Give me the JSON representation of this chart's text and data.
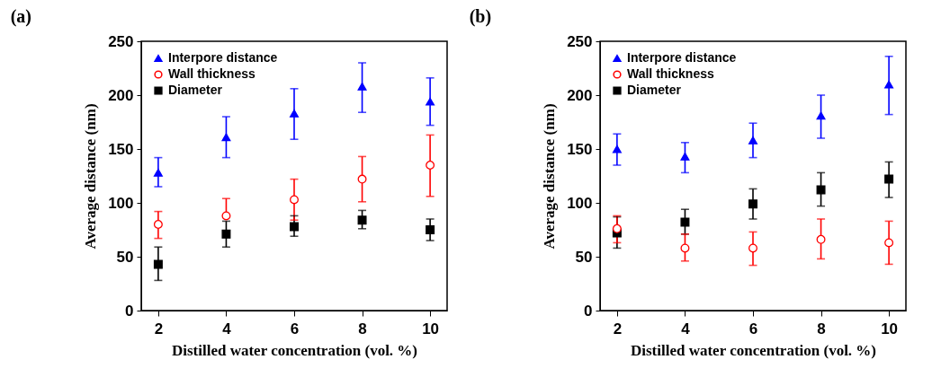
{
  "chart_data": [
    {
      "type": "scatter",
      "title": "(a)",
      "xlabel": "Distilled water concentration (vol. %)",
      "ylabel": "Average distance (nm)",
      "x": [
        2,
        4,
        6,
        8,
        10
      ],
      "xlim": [
        1.5,
        10.5
      ],
      "xticks": [
        2,
        4,
        6,
        8,
        10
      ],
      "ylim": [
        0,
        250
      ],
      "yticks": [
        0,
        50,
        100,
        150,
        200,
        250
      ],
      "grid": false,
      "legend": "top left",
      "series": [
        {
          "name": "Interpore distance",
          "color": "#0000ff",
          "marker": "triangle",
          "values": [
            128,
            161,
            183,
            208,
            194
          ],
          "errors": [
            [
              115,
              142
            ],
            [
              142,
              180
            ],
            [
              159,
              206
            ],
            [
              184,
              230
            ],
            [
              172,
              216
            ]
          ]
        },
        {
          "name": "Wall thickness",
          "color": "#ff0000",
          "marker": "circle",
          "values": [
            80,
            88,
            103,
            122,
            135
          ],
          "errors": [
            [
              67,
              92
            ],
            [
              88,
              104
            ],
            [
              84,
              122
            ],
            [
              101,
              143
            ],
            [
              106,
              163
            ]
          ]
        },
        {
          "name": "Diameter",
          "color": "#000000",
          "marker": "square",
          "values": [
            43,
            71,
            78,
            84,
            75
          ],
          "errors": [
            [
              28,
              59
            ],
            [
              59,
              83
            ],
            [
              69,
              88
            ],
            [
              76,
              93
            ],
            [
              65,
              85
            ]
          ]
        }
      ]
    },
    {
      "type": "scatter",
      "title": "(b)",
      "xlabel": "Distilled water concentration (vol. %)",
      "ylabel": "Average distance (nm)",
      "x": [
        2,
        4,
        6,
        8,
        10
      ],
      "xlim": [
        1.5,
        10.5
      ],
      "xticks": [
        2,
        4,
        6,
        8,
        10
      ],
      "ylim": [
        0,
        250
      ],
      "yticks": [
        0,
        50,
        100,
        150,
        200,
        250
      ],
      "grid": false,
      "legend": "top left",
      "series": [
        {
          "name": "Interpore distance",
          "color": "#0000ff",
          "marker": "triangle",
          "values": [
            150,
            143,
            158,
            181,
            210
          ],
          "errors": [
            [
              135,
              164
            ],
            [
              128,
              156
            ],
            [
              142,
              174
            ],
            [
              160,
              200
            ],
            [
              182,
              236
            ]
          ]
        },
        {
          "name": "Wall thickness",
          "color": "#ff0000",
          "marker": "circle",
          "values": [
            76,
            58,
            58,
            66,
            63
          ],
          "errors": [
            [
              63,
              88
            ],
            [
              46,
              71
            ],
            [
              42,
              73
            ],
            [
              48,
              85
            ],
            [
              43,
              83
            ]
          ]
        },
        {
          "name": "Diameter",
          "color": "#000000",
          "marker": "square",
          "values": [
            72,
            82,
            99,
            112,
            122
          ],
          "errors": [
            [
              58,
              87
            ],
            [
              71,
              94
            ],
            [
              85,
              113
            ],
            [
              97,
              128
            ],
            [
              105,
              138
            ]
          ]
        }
      ]
    }
  ]
}
